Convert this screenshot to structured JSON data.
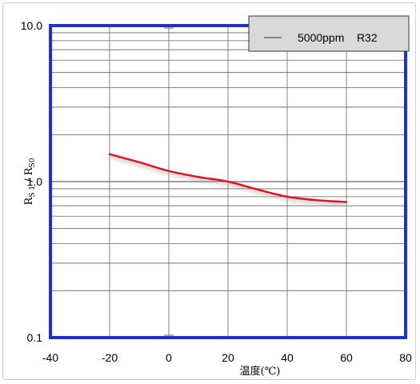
{
  "chart_data": {
    "type": "line",
    "title": "",
    "xlabel": "温度(℃)",
    "ylabel_main": "R",
    "ylabel_sub1": "S 1",
    "ylabel_sep": " / R",
    "ylabel_sub2": "S0",
    "x_scale": "linear",
    "y_scale": "log",
    "xlim": [
      -40,
      80
    ],
    "ylim": [
      0.1,
      10.0
    ],
    "x_ticks": [
      -40,
      -20,
      0,
      20,
      40,
      60,
      80
    ],
    "x_tick_labels": [
      "-40",
      "-20",
      "0",
      "20",
      "40",
      "60",
      "80"
    ],
    "y_tick_labels": [
      {
        "value": 0.1,
        "label": "0.1"
      },
      {
        "value": 1.0,
        "label": "1.0"
      },
      {
        "value": 10.0,
        "label": "10.0"
      }
    ],
    "grid": true,
    "legend_position": "top-right",
    "series": [
      {
        "name": "5000ppm    R32",
        "color": "#e0141e",
        "x": [
          -20,
          -10,
          0,
          10,
          20,
          30,
          40,
          50,
          60
        ],
        "y": [
          1.5,
          1.33,
          1.17,
          1.07,
          1.0,
          0.89,
          0.8,
          0.76,
          0.74
        ]
      }
    ],
    "colors": {
      "frame": "#1f2fd6",
      "grid": "#666666",
      "legend_bg": "#d9d9d9"
    }
  }
}
